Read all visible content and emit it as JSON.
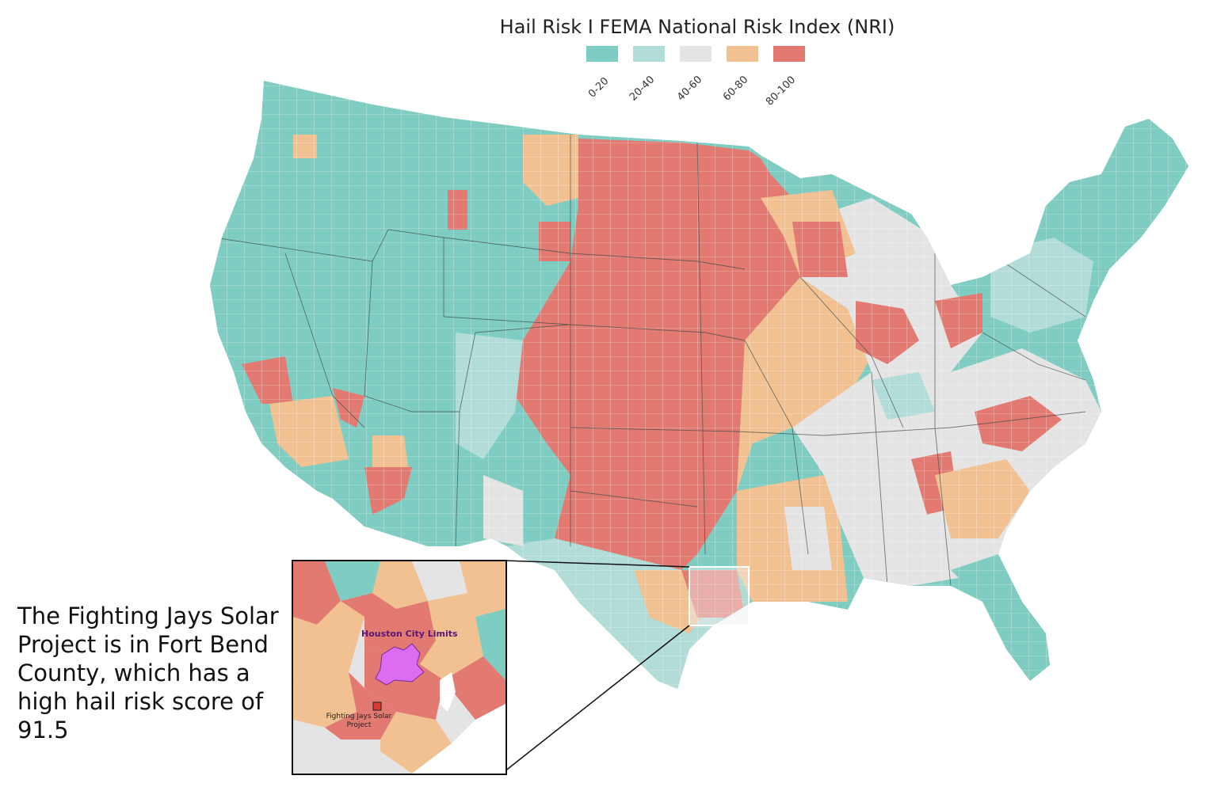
{
  "title": "Hail Risk I FEMA National Risk Index (NRI)",
  "legend": {
    "items": [
      {
        "label": "0-20",
        "color": "#7fcdc2"
      },
      {
        "label": "20-40",
        "color": "#b2dcd8"
      },
      {
        "label": "40-60",
        "color": "#e4e4e4"
      },
      {
        "label": "60-80",
        "color": "#f2c191"
      },
      {
        "label": "80-100",
        "color": "#e27a72"
      }
    ]
  },
  "caption": "The Fighting Jays Solar Project is in Fort Bend County, which has a high hail risk score of 91.5",
  "inset": {
    "city_label": "Houston City Limits",
    "project_label": "Fighting Jays Solar Project",
    "city_color": "#dc6cf0",
    "project_marker_color": "#d93a32"
  }
}
